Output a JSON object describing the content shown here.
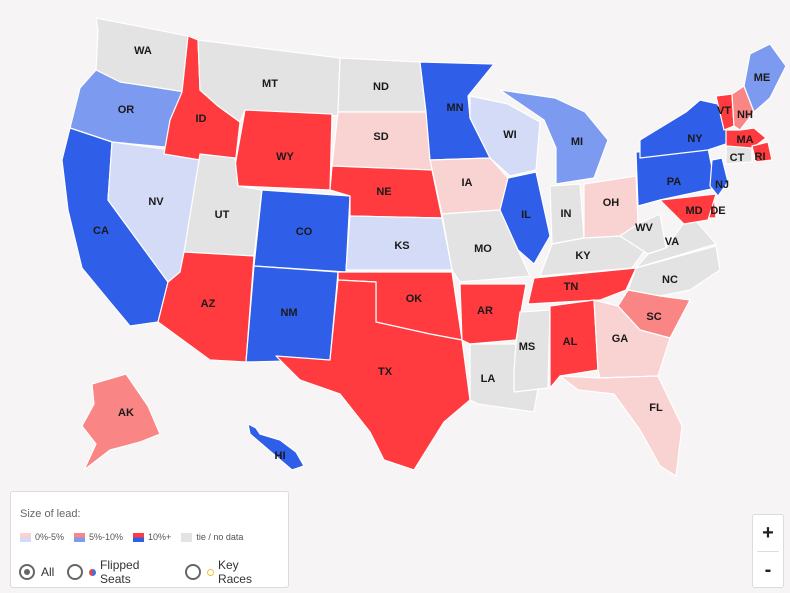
{
  "colors": {
    "red_strong": "#ff3b3f",
    "red_mid": "#f98585",
    "red_light": "#f9d2d2",
    "blue_strong": "#2f5ee8",
    "blue_mid": "#7c9bf0",
    "blue_light": "#d3dbf6",
    "tie": "#e3e3e3"
  },
  "states": [
    {
      "abbr": "WA",
      "cat": "tie"
    },
    {
      "abbr": "OR",
      "cat": "blue_mid"
    },
    {
      "abbr": "CA",
      "cat": "blue_strong"
    },
    {
      "abbr": "NV",
      "cat": "blue_light"
    },
    {
      "abbr": "ID",
      "cat": "red_strong"
    },
    {
      "abbr": "MT",
      "cat": "tie"
    },
    {
      "abbr": "WY",
      "cat": "red_strong"
    },
    {
      "abbr": "UT",
      "cat": "tie"
    },
    {
      "abbr": "AZ",
      "cat": "red_strong"
    },
    {
      "abbr": "CO",
      "cat": "blue_strong"
    },
    {
      "abbr": "NM",
      "cat": "blue_strong"
    },
    {
      "abbr": "ND",
      "cat": "tie"
    },
    {
      "abbr": "SD",
      "cat": "red_light"
    },
    {
      "abbr": "NE",
      "cat": "red_strong"
    },
    {
      "abbr": "KS",
      "cat": "blue_light"
    },
    {
      "abbr": "OK",
      "cat": "red_strong"
    },
    {
      "abbr": "TX",
      "cat": "red_strong"
    },
    {
      "abbr": "MN",
      "cat": "blue_strong"
    },
    {
      "abbr": "IA",
      "cat": "red_light"
    },
    {
      "abbr": "MO",
      "cat": "tie"
    },
    {
      "abbr": "AR",
      "cat": "red_strong"
    },
    {
      "abbr": "LA",
      "cat": "tie"
    },
    {
      "abbr": "WI",
      "cat": "blue_light"
    },
    {
      "abbr": "IL",
      "cat": "blue_strong"
    },
    {
      "abbr": "MS",
      "cat": "tie"
    },
    {
      "abbr": "MI",
      "cat": "blue_mid"
    },
    {
      "abbr": "IN",
      "cat": "tie"
    },
    {
      "abbr": "KY",
      "cat": "tie"
    },
    {
      "abbr": "TN",
      "cat": "red_strong"
    },
    {
      "abbr": "AL",
      "cat": "red_strong"
    },
    {
      "abbr": "OH",
      "cat": "red_light"
    },
    {
      "abbr": "WV",
      "cat": "tie"
    },
    {
      "abbr": "VA",
      "cat": "tie"
    },
    {
      "abbr": "NC",
      "cat": "tie"
    },
    {
      "abbr": "SC",
      "cat": "red_mid"
    },
    {
      "abbr": "GA",
      "cat": "red_light"
    },
    {
      "abbr": "FL",
      "cat": "red_light"
    },
    {
      "abbr": "PA",
      "cat": "blue_strong"
    },
    {
      "abbr": "NY",
      "cat": "blue_strong"
    },
    {
      "abbr": "VT",
      "cat": "red_strong"
    },
    {
      "abbr": "NH",
      "cat": "red_mid"
    },
    {
      "abbr": "ME",
      "cat": "blue_mid"
    },
    {
      "abbr": "MA",
      "cat": "red_strong"
    },
    {
      "abbr": "RI",
      "cat": "red_strong"
    },
    {
      "abbr": "CT",
      "cat": "tie"
    },
    {
      "abbr": "NJ",
      "cat": "blue_strong"
    },
    {
      "abbr": "DE",
      "cat": "red_strong"
    },
    {
      "abbr": "MD",
      "cat": "red_strong"
    },
    {
      "abbr": "AK",
      "cat": "red_mid"
    },
    {
      "abbr": "HI",
      "cat": "blue_strong"
    }
  ],
  "legend": {
    "title": "Size of lead:",
    "items": [
      {
        "label": "0%-5%",
        "colors": [
          "#f9d2d2",
          "#d3dbf6"
        ]
      },
      {
        "label": "5%-10%",
        "colors": [
          "#f98585",
          "#7c9bf0"
        ]
      },
      {
        "label": "10%+",
        "colors": [
          "#ff3b3f",
          "#2f5ee8"
        ]
      },
      {
        "label": "tie / no data",
        "colors": [
          "#e3e3e3",
          "#e3e3e3"
        ]
      }
    ]
  },
  "filters": {
    "selected": "All",
    "options": [
      "All",
      "Flipped Seats",
      "Key Races"
    ]
  },
  "zoom": {
    "in_label": "+",
    "out_label": "-"
  }
}
